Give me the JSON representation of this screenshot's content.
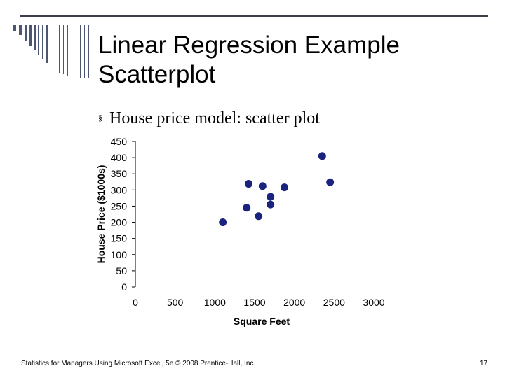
{
  "slide": {
    "title_line1": "Linear Regression Example",
    "title_line2": "Scatterplot",
    "bullet": "House price model:  scatter plot",
    "bullet_mark": "§",
    "footer": "Statistics for Managers Using Microsoft Excel, 5e © 2008 Prentice-Hall, Inc.",
    "page_number": "17"
  },
  "colors": {
    "accent_rule": "#3a3f4a",
    "marker": "#1a237e",
    "deco_bars": "#4d5670"
  },
  "chart_data": {
    "type": "scatter",
    "xlabel": "Square Feet",
    "ylabel": "House Price ($1000s)",
    "xlim": [
      0,
      3000
    ],
    "ylim": [
      0,
      450
    ],
    "xticks": [
      0,
      500,
      1000,
      1500,
      2000,
      2500,
      3000
    ],
    "yticks": [
      0,
      50,
      100,
      150,
      200,
      250,
      300,
      350,
      400,
      450
    ],
    "grid": false,
    "series": [
      {
        "points": [
          [
            1100,
            200
          ],
          [
            1400,
            245
          ],
          [
            1425,
            319
          ],
          [
            1550,
            219
          ],
          [
            1600,
            312
          ],
          [
            1700,
            279
          ],
          [
            1700,
            255
          ],
          [
            1875,
            308
          ],
          [
            2350,
            405
          ],
          [
            2450,
            324
          ]
        ]
      }
    ]
  }
}
